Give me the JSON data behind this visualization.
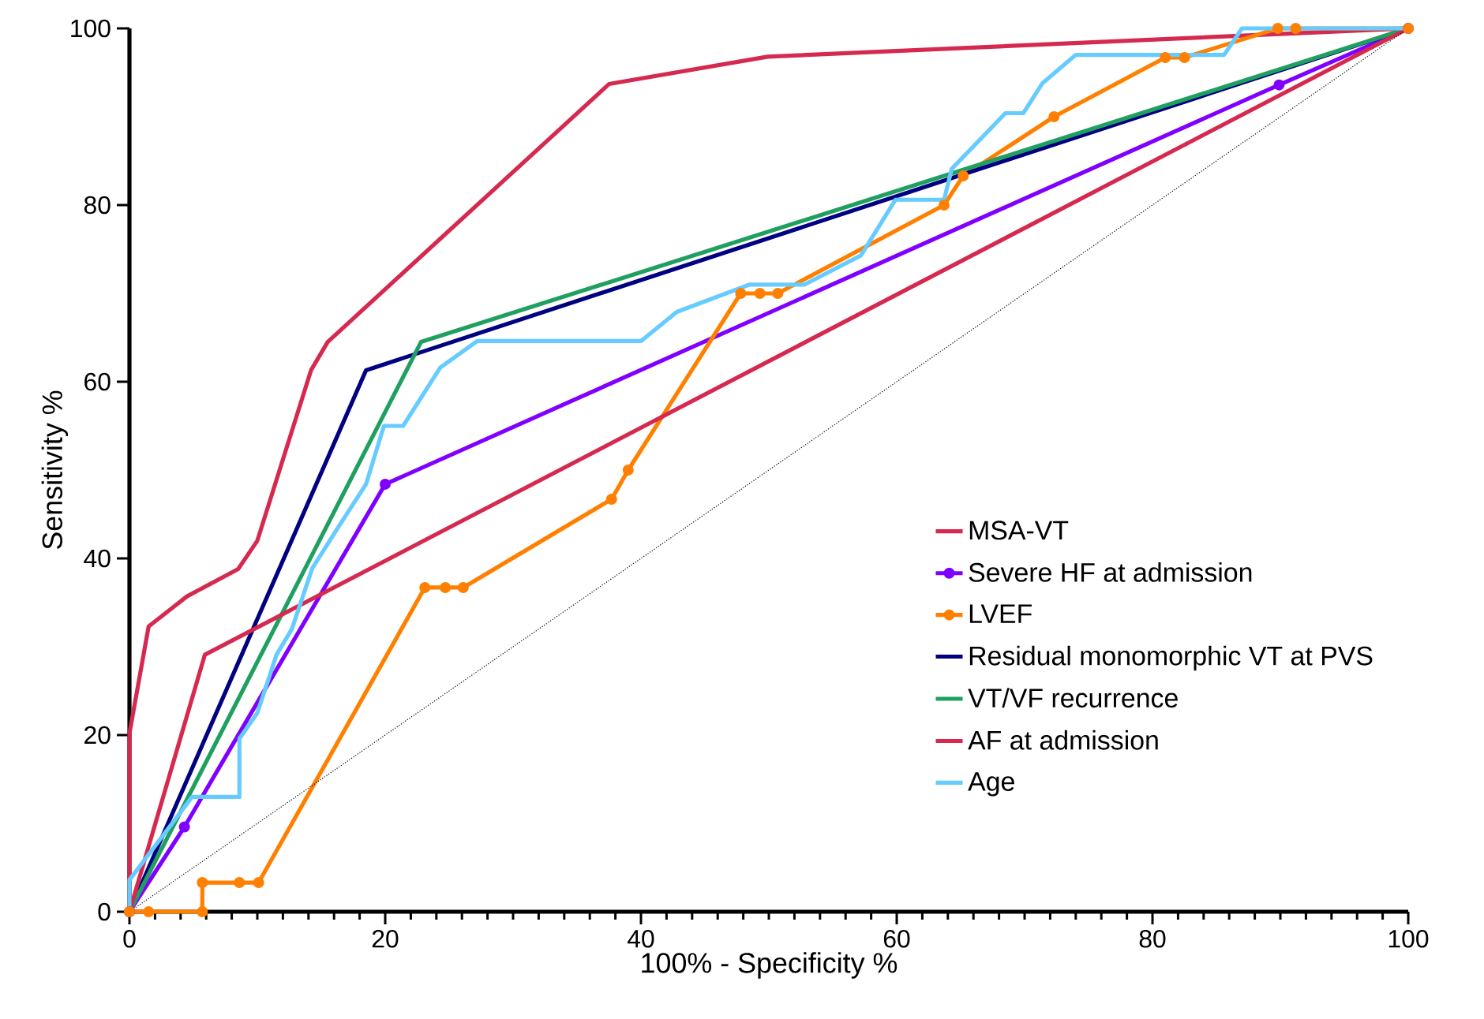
{
  "chart_data": {
    "type": "line",
    "xlabel": "100% - Specificity %",
    "ylabel": "Sensitivity %",
    "xlim": [
      0,
      100
    ],
    "ylim": [
      0,
      100
    ],
    "xticks": [
      0,
      20,
      40,
      60,
      80,
      100
    ],
    "yticks": [
      0,
      20,
      40,
      60,
      80,
      100
    ],
    "grid": false,
    "legend": "right",
    "line_style": "solid",
    "series": [
      {
        "name": "MSA-VT",
        "color": "#d6294f",
        "marker": "none",
        "x": [
          0,
          0,
          1.5,
          4.5,
          8.5,
          10,
          14.2,
          15.5,
          37.5,
          49.9,
          100
        ],
        "values": [
          0,
          20.2,
          32.3,
          35.7,
          38.8,
          42,
          61.3,
          64.5,
          93.7,
          96.8,
          100
        ]
      },
      {
        "name": "Severe HF at admission",
        "color": "#8000ff",
        "marker": "circle",
        "x": [
          0,
          4.3,
          20,
          89.9,
          100
        ],
        "values": [
          0,
          9.6,
          48.4,
          93.6,
          100
        ]
      },
      {
        "name": "LVEF",
        "color": "#ff8000",
        "marker": "circle",
        "x": [
          0,
          1.5,
          5.7,
          5.7,
          8.6,
          10.1,
          23.1,
          24.7,
          26.1,
          37.7,
          39,
          47.8,
          49.3,
          50.7,
          63.7,
          65.2,
          72.3,
          81,
          82.5,
          89.8,
          91.2,
          100
        ],
        "values": [
          0,
          0,
          0,
          3.3,
          3.3,
          3.3,
          36.7,
          36.7,
          36.7,
          46.7,
          50,
          70,
          70,
          70,
          80,
          83.3,
          90,
          96.7,
          96.7,
          100,
          100,
          100
        ]
      },
      {
        "name": "Residual monomorphic VT at PVS",
        "color": "#000080",
        "marker": "none",
        "x": [
          0,
          18.5,
          100
        ],
        "values": [
          0,
          61.3,
          100
        ]
      },
      {
        "name": "VT/VF recurrence",
        "color": "#20a060",
        "marker": "none",
        "x": [
          0,
          22.8,
          100
        ],
        "values": [
          0,
          64.5,
          100
        ]
      },
      {
        "name": "AF at admission",
        "color": "#d6294f",
        "marker": "none",
        "x": [
          0,
          5.9,
          100
        ],
        "values": [
          0,
          29.1,
          100
        ]
      },
      {
        "name": "Age",
        "color": "#66ccff",
        "marker": "none",
        "x": [
          0,
          0,
          4.9,
          8.6,
          8.6,
          10,
          11.5,
          12.7,
          14.3,
          16.4,
          18.5,
          19.9,
          21.4,
          24.3,
          27.2,
          40,
          42.8,
          48.5,
          52.8,
          57.2,
          59.9,
          63.7,
          64.3,
          68.5,
          69.9,
          71.4,
          74,
          85.6,
          87,
          100
        ],
        "values": [
          0,
          3.6,
          13,
          13,
          19.6,
          22.5,
          29.1,
          32,
          38.9,
          43.7,
          48.4,
          55,
          55,
          61.6,
          64.6,
          64.6,
          67.9,
          71,
          71,
          74.3,
          80.6,
          80.6,
          84.1,
          90.4,
          90.4,
          93.8,
          97,
          97,
          100,
          100
        ]
      },
      {
        "color": "#000000",
        "line_style": "dotted",
        "marker": "none",
        "x": [
          0,
          100
        ],
        "values": [
          0,
          100
        ]
      }
    ]
  }
}
